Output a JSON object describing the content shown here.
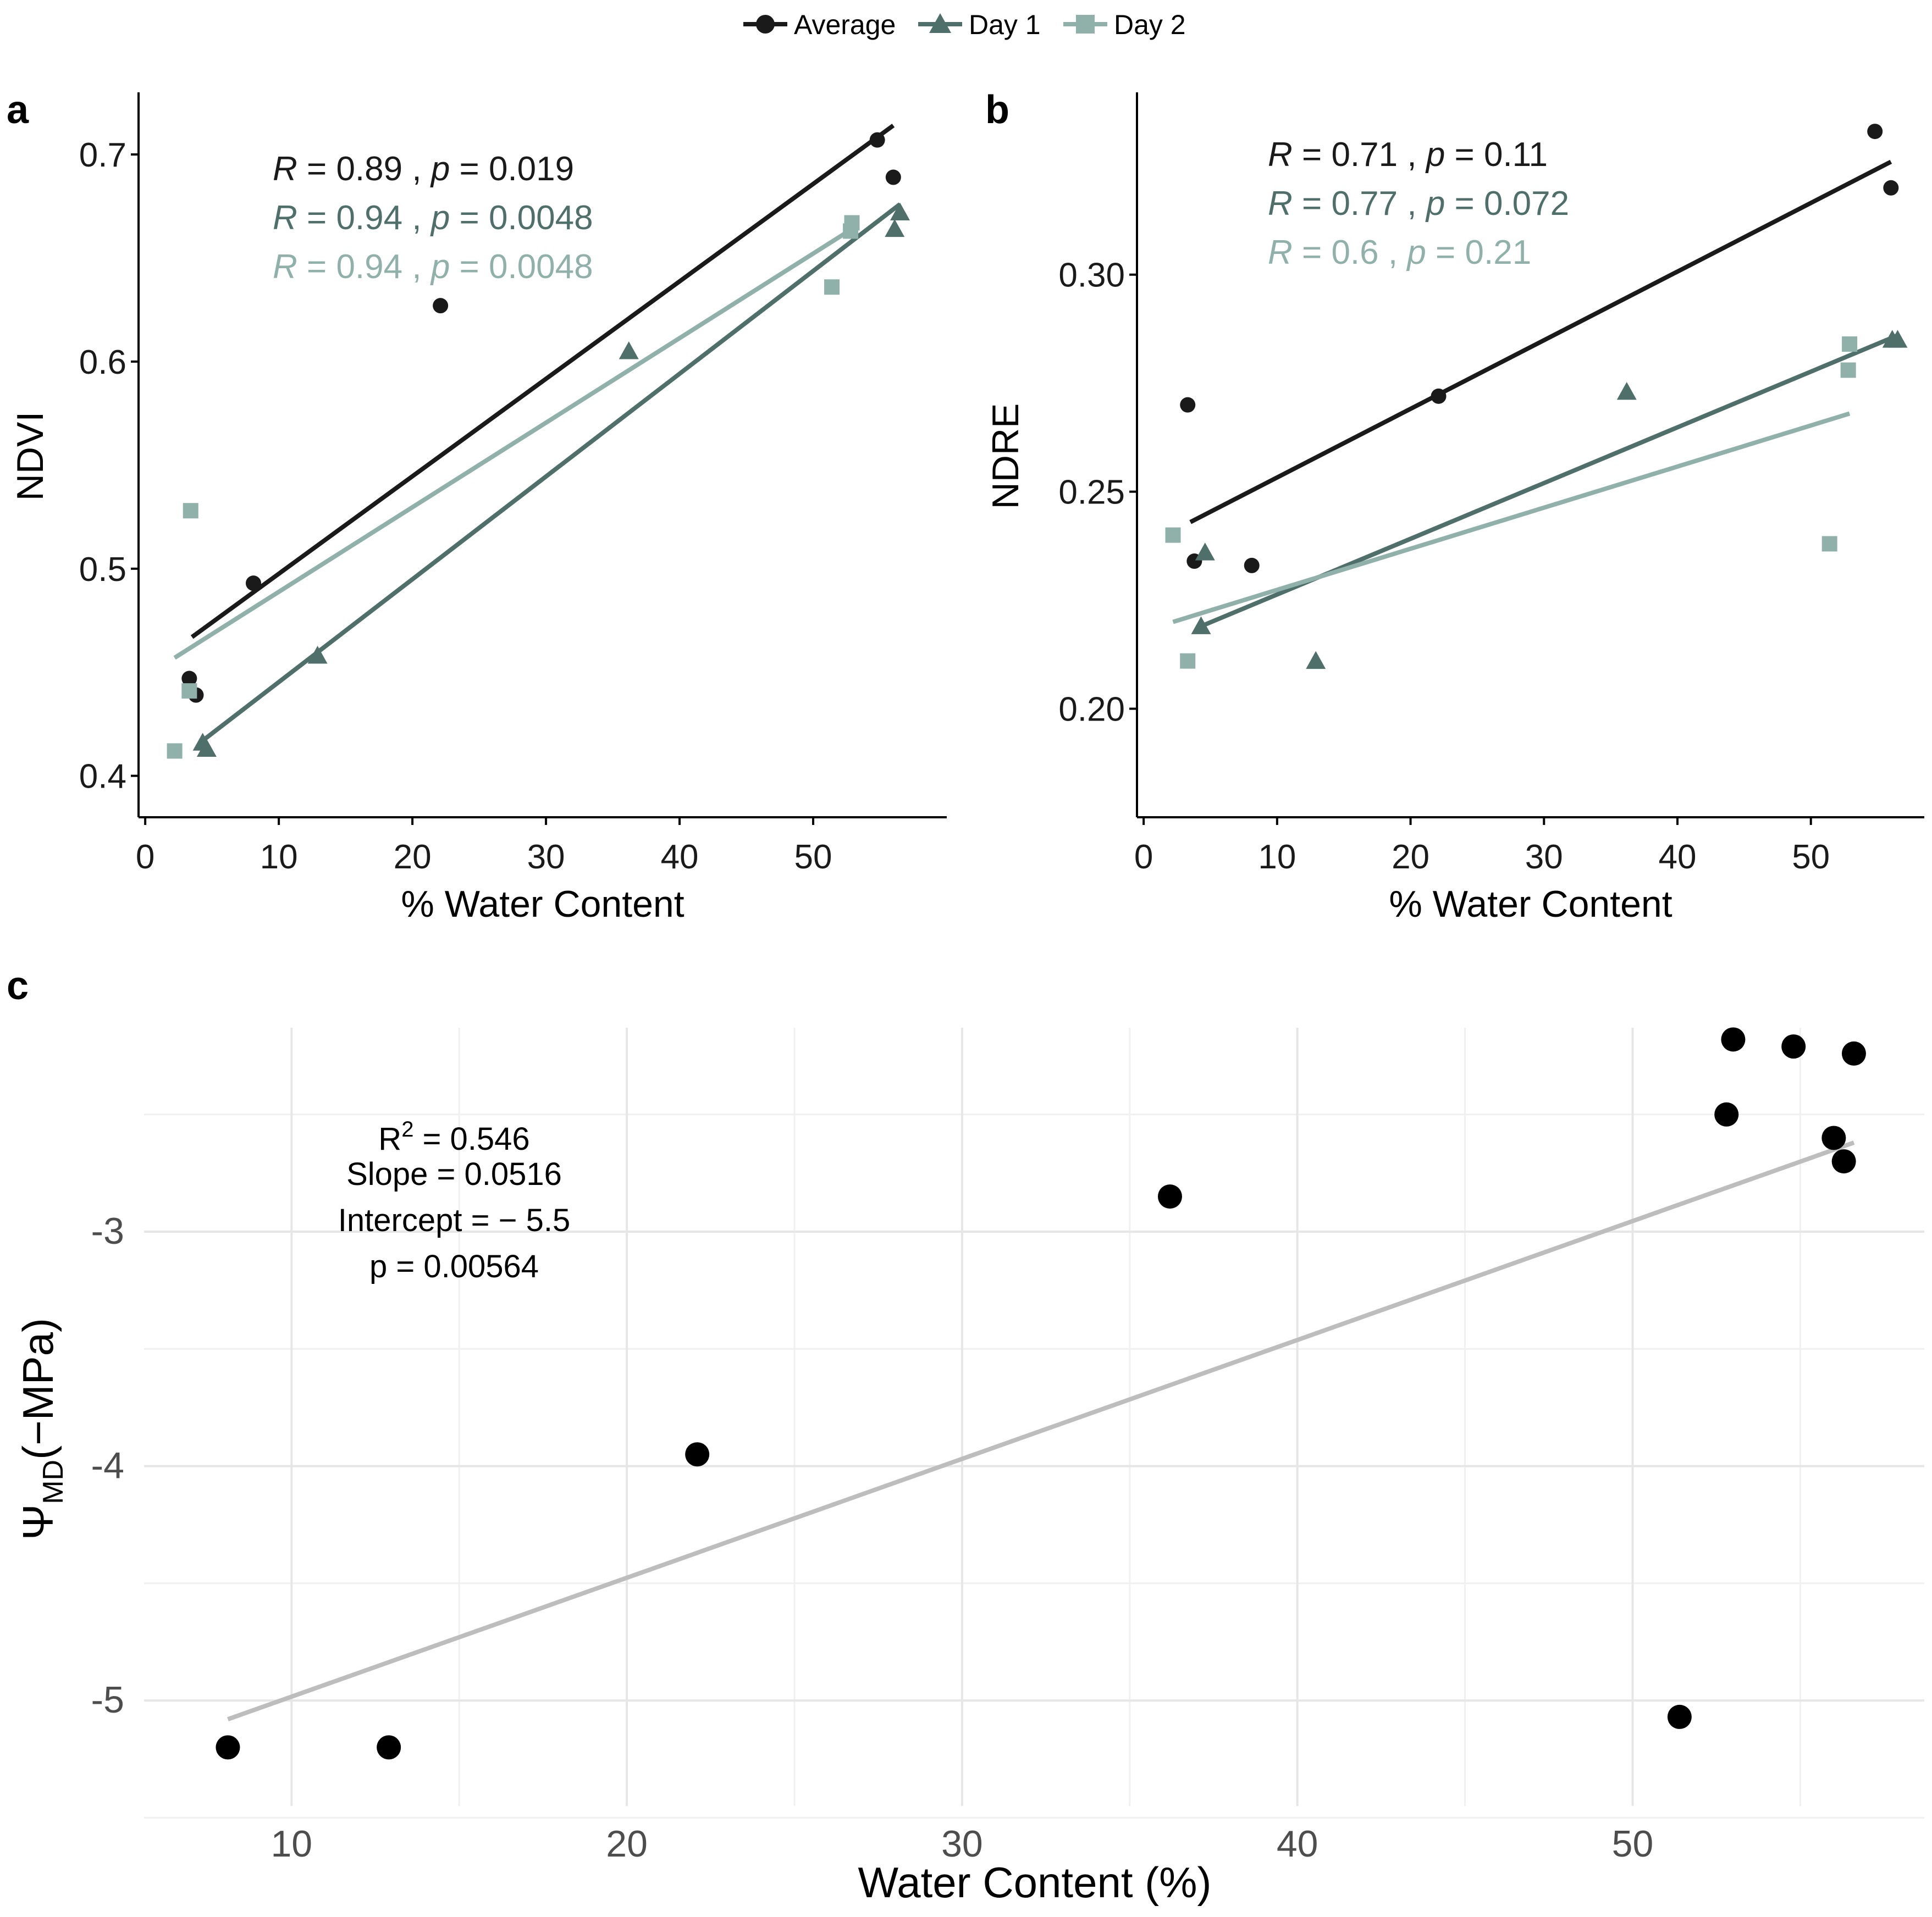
{
  "legend": {
    "items": [
      {
        "label": "Average",
        "color": "#1a1a1a",
        "shape": "circle"
      },
      {
        "label": "Day 1",
        "color": "#4f6f6a",
        "shape": "triangle"
      },
      {
        "label": "Day 2",
        "color": "#8fb1aa",
        "shape": "square"
      }
    ]
  },
  "chart_data": [
    {
      "panel": "a",
      "type": "scatter",
      "xlabel": "% Water Content",
      "ylabel": "NDVI",
      "xlim": [
        -0.5,
        60
      ],
      "ylim": [
        0.38,
        0.73
      ],
      "xticks": [
        "0",
        "10",
        "20",
        "30",
        "40",
        "50"
      ],
      "yticks": [
        "0.4",
        "0.5",
        "0.6",
        "0.7"
      ],
      "series": [
        {
          "name": "Average",
          "color": "#1a1a1a",
          "shape": "circle",
          "points": [
            [
              3.3,
              0.447
            ],
            [
              3.8,
              0.439
            ],
            [
              8.1,
              0.493
            ],
            [
              22.1,
              0.627
            ],
            [
              54.8,
              0.707
            ],
            [
              56.0,
              0.689
            ]
          ],
          "fit": [
            [
              3.5,
              0.467
            ],
            [
              56.0,
              0.714
            ]
          ]
        },
        {
          "name": "Day 1",
          "color": "#4f6f6a",
          "shape": "triangle",
          "points": [
            [
              4.3,
              0.416
            ],
            [
              4.6,
              0.413
            ],
            [
              12.9,
              0.458
            ],
            [
              36.2,
              0.605
            ],
            [
              56.1,
              0.664
            ],
            [
              56.5,
              0.672
            ]
          ],
          "fit": [
            [
              4.3,
              0.417
            ],
            [
              56.5,
              0.676
            ]
          ]
        },
        {
          "name": "Day 2",
          "color": "#8fb1aa",
          "shape": "square",
          "points": [
            [
              2.2,
              0.412
            ],
            [
              3.3,
              0.441
            ],
            [
              3.4,
              0.528
            ],
            [
              51.4,
              0.636
            ],
            [
              52.8,
              0.663
            ],
            [
              52.9,
              0.667
            ]
          ],
          "fit": [
            [
              2.2,
              0.457
            ],
            [
              52.9,
              0.664
            ]
          ]
        }
      ],
      "stats": [
        {
          "r": "0.89",
          "p": "0.019",
          "color": "#1a1a1a"
        },
        {
          "r": "0.94",
          "p": "0.0048",
          "color": "#4f6f6a"
        },
        {
          "r": "0.94",
          "p": "0.0048",
          "color": "#8fb1aa"
        }
      ]
    },
    {
      "panel": "b",
      "type": "scatter",
      "xlabel": "% Water Content",
      "ylabel": "NDRE",
      "xlim": [
        -0.5,
        58.5
      ],
      "ylim": [
        0.175,
        0.342
      ],
      "xticks": [
        "0",
        "10",
        "20",
        "30",
        "40",
        "50"
      ],
      "yticks": [
        "0.20",
        "0.25",
        "0.30"
      ],
      "series": [
        {
          "name": "Average",
          "color": "#1a1a1a",
          "shape": "circle",
          "points": [
            [
              3.3,
              0.27
            ],
            [
              3.8,
              0.234
            ],
            [
              8.1,
              0.233
            ],
            [
              22.1,
              0.272
            ],
            [
              54.8,
              0.333
            ],
            [
              56.0,
              0.32
            ]
          ],
          "fit": [
            [
              3.5,
              0.243
            ],
            [
              56.0,
              0.326
            ]
          ]
        },
        {
          "name": "Day 1",
          "color": "#4f6f6a",
          "shape": "triangle",
          "points": [
            [
              4.3,
              0.219
            ],
            [
              4.6,
              0.236
            ],
            [
              12.9,
              0.211
            ],
            [
              36.2,
              0.273
            ],
            [
              56.1,
              0.285
            ],
            [
              56.5,
              0.285
            ]
          ],
          "fit": [
            [
              4.3,
              0.219
            ],
            [
              56.5,
              0.286
            ]
          ]
        },
        {
          "name": "Day 2",
          "color": "#8fb1aa",
          "shape": "square",
          "points": [
            [
              2.2,
              0.24
            ],
            [
              3.3,
              0.211
            ],
            [
              51.4,
              0.238
            ],
            [
              52.8,
              0.278
            ],
            [
              52.9,
              0.284
            ]
          ],
          "fit": [
            [
              2.2,
              0.22
            ],
            [
              52.9,
              0.268
            ]
          ]
        }
      ],
      "stats": [
        {
          "r": "0.71",
          "p": "0.11",
          "color": "#1a1a1a"
        },
        {
          "r": "0.77",
          "p": "0.072",
          "color": "#4f6f6a"
        },
        {
          "r": "0.6",
          "p": "0.21",
          "color": "#8fb1aa"
        }
      ]
    },
    {
      "panel": "c",
      "type": "scatter",
      "xlabel": "Water Content (%)",
      "ylabel_symbol": "Ψ",
      "ylabel_subscript": "MD",
      "ylabel_unit": "(−MPa)",
      "xlim": [
        5.6,
        58.7
      ],
      "ylim": [
        -5.45,
        -2.13
      ],
      "xticks": [
        "10",
        "20",
        "30",
        "40",
        "50"
      ],
      "yticks": [
        "-5",
        "-4",
        "-3"
      ],
      "points": [
        [
          8.1,
          -5.2
        ],
        [
          12.9,
          -5.2
        ],
        [
          22.1,
          -3.95
        ],
        [
          36.2,
          -2.85
        ],
        [
          51.4,
          -5.07
        ],
        [
          52.8,
          -2.5
        ],
        [
          53.0,
          -2.18
        ],
        [
          54.8,
          -2.21
        ],
        [
          56.0,
          -2.6
        ],
        [
          56.3,
          -2.7
        ],
        [
          56.6,
          -2.24
        ]
      ],
      "fit": [
        [
          8.1,
          -5.08
        ],
        [
          56.6,
          -2.62
        ]
      ],
      "fit_color": "#bdbdbd",
      "annotation": {
        "r2_label": "R",
        "r2_sup": "2",
        "r2_value": " = 0.546",
        "slope": "Slope = 0.0516",
        "intercept": "Intercept = − 5.5",
        "p": "p = 0.00564"
      }
    }
  ]
}
